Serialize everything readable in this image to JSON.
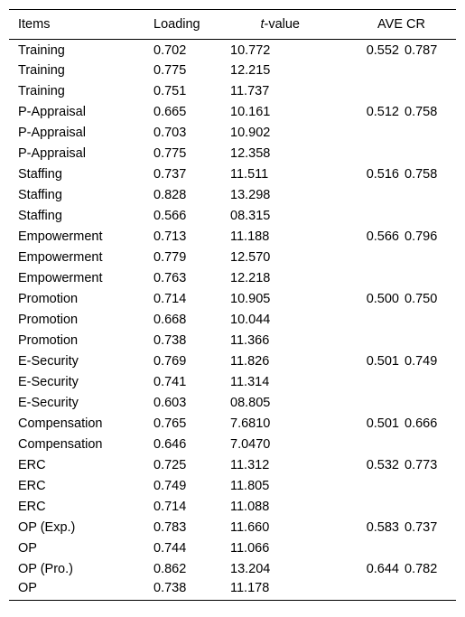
{
  "table": {
    "headers": {
      "items": "Items",
      "loading": "Loading",
      "tvalue_italic": "t",
      "tvalue_rest": "-value",
      "ave": "AVE",
      "cr": "CR"
    },
    "rows": [
      {
        "item": "Training",
        "loading": "0.702",
        "tvalue": "10.772",
        "ave": "0.552",
        "cr": "0.787"
      },
      {
        "item": "Training",
        "loading": "0.775",
        "tvalue": "12.215",
        "ave": "",
        "cr": ""
      },
      {
        "item": "Training",
        "loading": "0.751",
        "tvalue": "11.737",
        "ave": "",
        "cr": ""
      },
      {
        "item": "P-Appraisal",
        "loading": "0.665",
        "tvalue": "10.161",
        "ave": "0.512",
        "cr": "0.758"
      },
      {
        "item": "P-Appraisal",
        "loading": "0.703",
        "tvalue": "10.902",
        "ave": "",
        "cr": ""
      },
      {
        "item": "P-Appraisal",
        "loading": "0.775",
        "tvalue": "12.358",
        "ave": "",
        "cr": ""
      },
      {
        "item": "Staffing",
        "loading": "0.737",
        "tvalue": "11.511",
        "ave": "0.516",
        "cr": "0.758"
      },
      {
        "item": "Staffing",
        "loading": "0.828",
        "tvalue": "13.298",
        "ave": "",
        "cr": ""
      },
      {
        "item": "Staffing",
        "loading": "0.566",
        "tvalue": "08.315",
        "ave": "",
        "cr": ""
      },
      {
        "item": "Empowerment",
        "loading": "0.713",
        "tvalue": "11.188",
        "ave": "0.566",
        "cr": "0.796"
      },
      {
        "item": "Empowerment",
        "loading": "0.779",
        "tvalue": "12.570",
        "ave": "",
        "cr": ""
      },
      {
        "item": "Empowerment",
        "loading": "0.763",
        "tvalue": "12.218",
        "ave": "",
        "cr": ""
      },
      {
        "item": "Promotion",
        "loading": "0.714",
        "tvalue": "10.905",
        "ave": "0.500",
        "cr": "0.750"
      },
      {
        "item": "Promotion",
        "loading": "0.668",
        "tvalue": "10.044",
        "ave": "",
        "cr": ""
      },
      {
        "item": "Promotion",
        "loading": "0.738",
        "tvalue": "11.366",
        "ave": "",
        "cr": ""
      },
      {
        "item": "E-Security",
        "loading": "0.769",
        "tvalue": "11.826",
        "ave": "0.501",
        "cr": "0.749"
      },
      {
        "item": "E-Security",
        "loading": "0.741",
        "tvalue": "11.314",
        "ave": "",
        "cr": ""
      },
      {
        "item": "E-Security",
        "loading": "0.603",
        "tvalue": "08.805",
        "ave": "",
        "cr": ""
      },
      {
        "item": "Compensation",
        "loading": "0.765",
        "tvalue": "7.6810",
        "ave": "0.501",
        "cr": "0.666"
      },
      {
        "item": "Compensation",
        "loading": "0.646",
        "tvalue": "7.0470",
        "ave": "",
        "cr": ""
      },
      {
        "item": "ERC",
        "loading": "0.725",
        "tvalue": "11.312",
        "ave": "0.532",
        "cr": "0.773"
      },
      {
        "item": "ERC",
        "loading": "0.749",
        "tvalue": "11.805",
        "ave": "",
        "cr": ""
      },
      {
        "item": "ERC",
        "loading": "0.714",
        "tvalue": "11.088",
        "ave": "",
        "cr": ""
      },
      {
        "item": "OP (Exp.)",
        "loading": "0.783",
        "tvalue": "11.660",
        "ave": "0.583",
        "cr": "0.737"
      },
      {
        "item": "OP",
        "loading": "0.744",
        "tvalue": "11.066",
        "ave": "",
        "cr": ""
      },
      {
        "item": "OP (Pro.)",
        "loading": "0.862",
        "tvalue": "13.204",
        "ave": "0.644",
        "cr": "0.782"
      },
      {
        "item": "OP",
        "loading": "0.738",
        "tvalue": "11.178",
        "ave": "",
        "cr": ""
      }
    ]
  }
}
